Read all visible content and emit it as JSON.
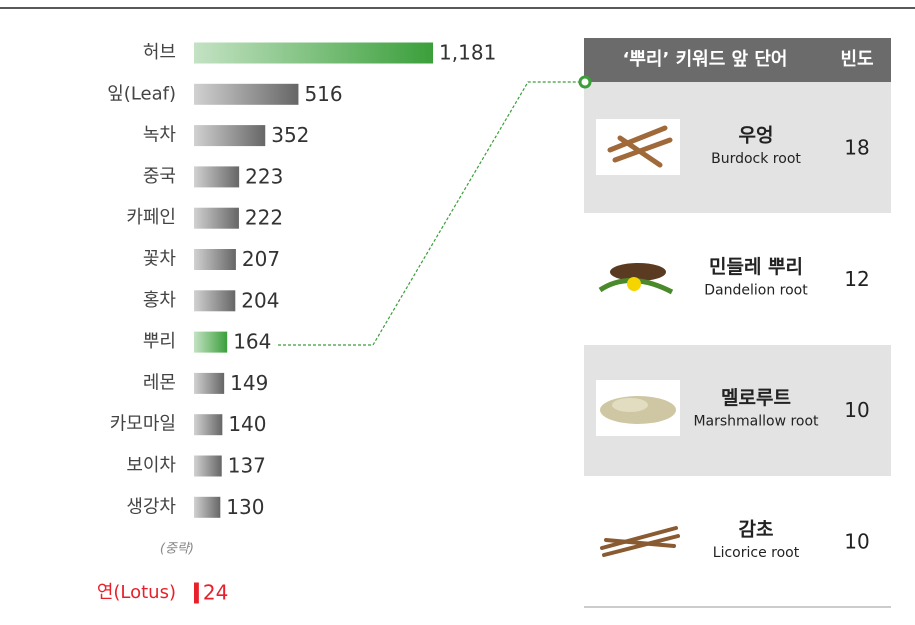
{
  "chart_data": {
    "type": "bar",
    "categories": [
      "허브",
      "잎(Leaf)",
      "녹차",
      "중국",
      "카페인",
      "꽃차",
      "홍차",
      "뿌리",
      "레몬",
      "카모마일",
      "보이차",
      "생강차"
    ],
    "values": [
      1181,
      516,
      352,
      223,
      222,
      207,
      204,
      164,
      149,
      140,
      137,
      130
    ],
    "value_labels": [
      "1,181",
      "516",
      "352",
      "223",
      "222",
      "207",
      "204",
      "164",
      "149",
      "140",
      "137",
      "130"
    ],
    "colors": [
      "#3a9f3a",
      "#666666",
      "#666666",
      "#666666",
      "#666666",
      "#666666",
      "#666666",
      "#3a9f3a",
      "#666666",
      "#666666",
      "#666666",
      "#666666"
    ],
    "annotation": "(중략)",
    "comparison": {
      "category": "연(Lotus)",
      "value": 24,
      "color": "#e8202a"
    }
  },
  "table": {
    "columns": [
      "‘뿌리’ 키워드 앞 단어",
      "빈도"
    ],
    "rows": [
      {
        "name": "우엉",
        "english": "Burdock root",
        "frequency": "18"
      },
      {
        "name": "민들레 뿌리",
        "english": "Dandelion root",
        "frequency": "12"
      },
      {
        "name": "멜로루트",
        "english": "Marshmallow root",
        "frequency": "10"
      },
      {
        "name": "감초",
        "english": "Licorice root",
        "frequency": "10"
      }
    ]
  }
}
